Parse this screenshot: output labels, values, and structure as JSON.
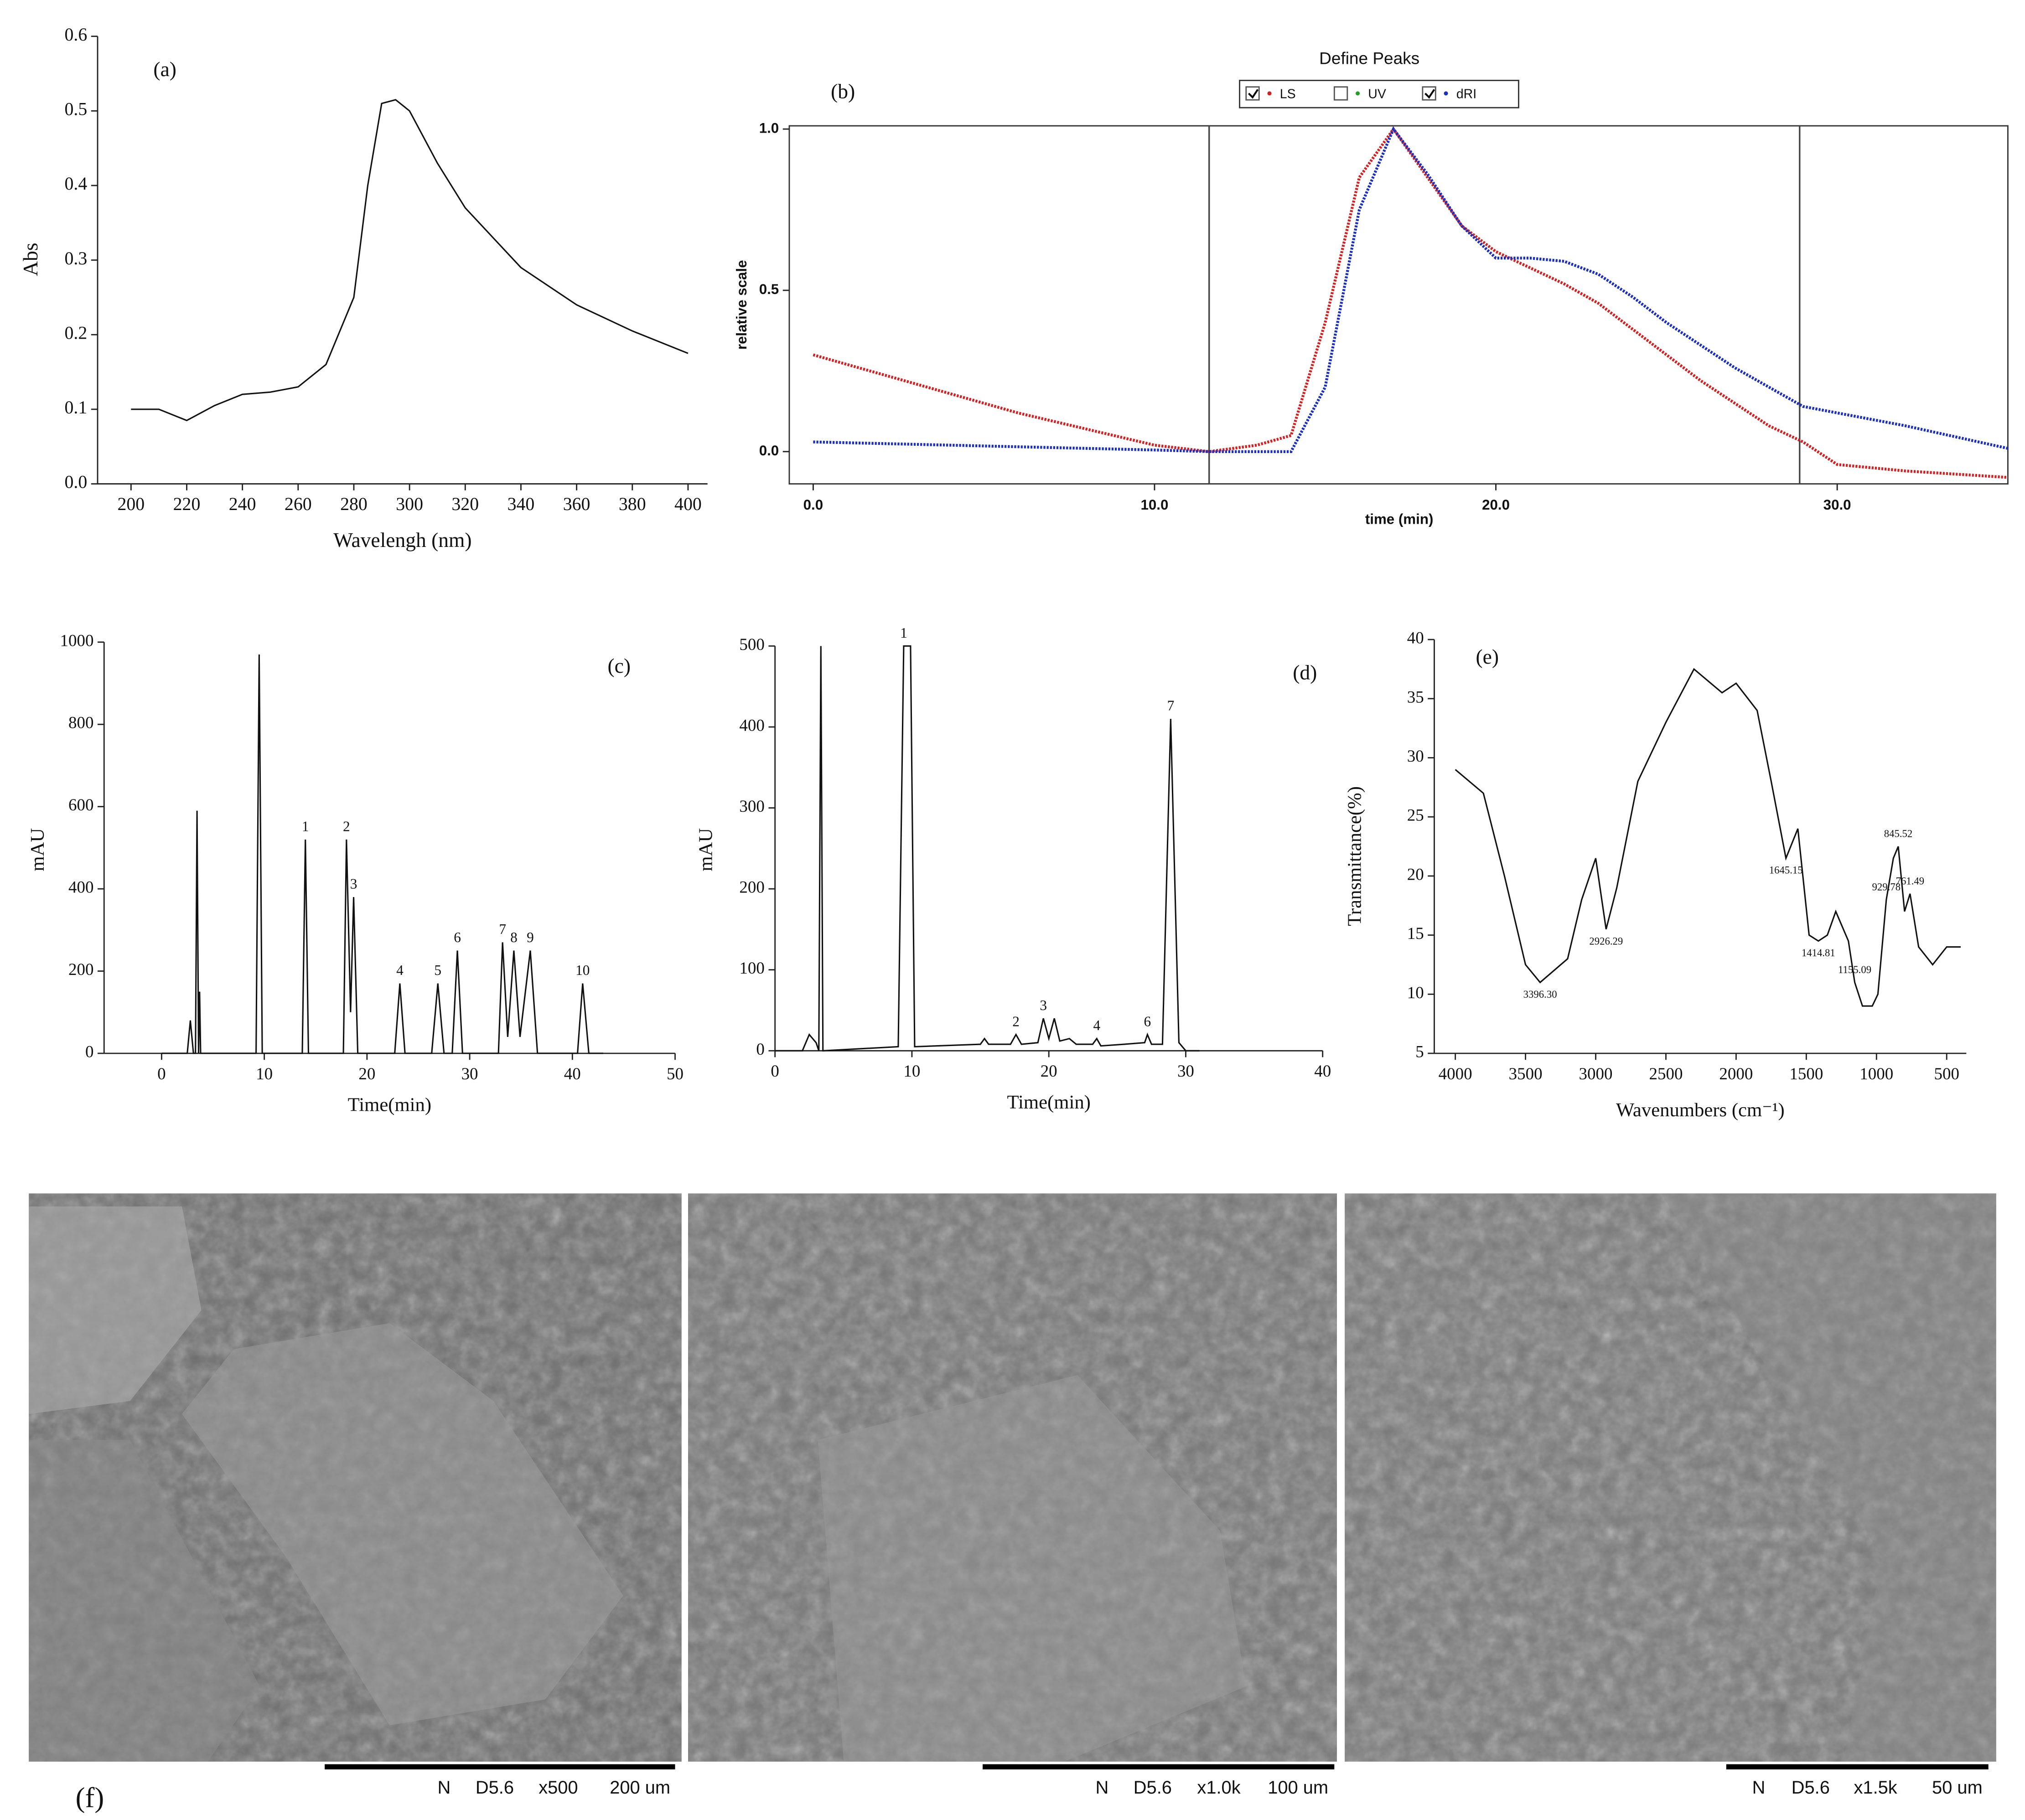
{
  "chart_data": [
    {
      "type": "line",
      "annotation": "(a)",
      "x_label": "Wavelengh (nm)",
      "y_label": "Abs",
      "color": "#111111",
      "x": [
        200,
        210,
        220,
        230,
        240,
        250,
        260,
        270,
        280,
        285,
        290,
        295,
        300,
        310,
        320,
        330,
        340,
        360,
        380,
        400
      ],
      "values": [
        0.1,
        0.1,
        0.085,
        0.105,
        0.12,
        0.123,
        0.13,
        0.16,
        0.25,
        0.4,
        0.51,
        0.515,
        0.5,
        0.43,
        0.37,
        0.33,
        0.29,
        0.24,
        0.205,
        0.175
      ],
      "xlim": [
        188,
        407
      ],
      "xticks": [
        200,
        220,
        240,
        260,
        280,
        300,
        320,
        340,
        360,
        380,
        400
      ],
      "ylim": [
        0,
        0.6
      ],
      "yticks": [
        {
          "value": 0,
          "label": "0.0"
        },
        0.1,
        0.2,
        0.3,
        0.4,
        0.5,
        0.6
      ]
    },
    {
      "type": "line",
      "title": "Define Peaks",
      "annotation": "(b)",
      "x_label": "time (min)",
      "y_label": "relative scale",
      "x": [
        0,
        2,
        4,
        6,
        8,
        10,
        11.6,
        13,
        14,
        15,
        16,
        17,
        18,
        19,
        20,
        21,
        22,
        23,
        24,
        25,
        26,
        27,
        28,
        29,
        30,
        32,
        35
      ],
      "series": [
        {
          "name": "LS",
          "color": "#d42020",
          "visible": true,
          "values": [
            0.3,
            0.24,
            0.18,
            0.12,
            0.07,
            0.02,
            0,
            0.02,
            0.05,
            0.4,
            0.85,
            1.0,
            0.85,
            0.7,
            0.62,
            0.57,
            0.52,
            0.46,
            0.38,
            0.3,
            0.22,
            0.15,
            0.08,
            0.03,
            -0.04,
            -0.06,
            -0.08
          ]
        },
        {
          "name": "UV",
          "color": "#20a020",
          "visible": false,
          "values": [
            null,
            null,
            null,
            null,
            null,
            null,
            null,
            null,
            null,
            null,
            null,
            null,
            null,
            null,
            null,
            null,
            null,
            null,
            null,
            null,
            null,
            null,
            null,
            null,
            null,
            null,
            null
          ]
        },
        {
          "name": "dRI",
          "color": "#1a2fc0",
          "visible": true,
          "values": [
            0.03,
            0.025,
            0.02,
            0.015,
            0.01,
            0.005,
            0,
            0,
            0,
            0.2,
            0.75,
            1.0,
            0.86,
            0.7,
            0.6,
            0.6,
            0.59,
            0.55,
            0.48,
            0.4,
            0.33,
            0.26,
            0.2,
            0.14,
            0.12,
            0.08,
            0.01
          ]
        }
      ],
      "markers": [
        11.6,
        28.9
      ],
      "xlim": [
        -0.7,
        35
      ],
      "xticks": [
        {
          "value": 0,
          "label": "0.0"
        },
        {
          "value": 10,
          "label": "10.0"
        },
        {
          "value": 20,
          "label": "20.0"
        },
        {
          "value": 30,
          "label": "30.0"
        }
      ],
      "ylim": [
        -0.1,
        1.01
      ],
      "yticks": [
        {
          "value": 0,
          "label": "0.0"
        },
        0.5,
        {
          "value": 1,
          "label": "1.0"
        }
      ]
    },
    {
      "type": "line",
      "annotation": "(c)",
      "x_label": "Time(min)",
      "y_label": "mAU",
      "color": "#111111",
      "x": [
        0,
        2.5,
        2.8,
        3.1,
        3.3,
        3.45,
        3.6,
        3.7,
        3.8,
        9.2,
        9.5,
        9.8,
        13.7,
        14,
        14.3,
        17.7,
        18,
        18.4,
        18.7,
        19.1,
        22.7,
        23.2,
        23.7,
        26.3,
        26.9,
        27.5,
        28.3,
        28.8,
        29.3,
        32.8,
        33.2,
        33.7,
        34.3,
        34.9,
        35.9,
        36.6,
        40.5,
        41,
        41.6,
        43
      ],
      "values": [
        0,
        0,
        80,
        0,
        0,
        590,
        0,
        150,
        0,
        0,
        970,
        0,
        0,
        520,
        0,
        0,
        520,
        100,
        380,
        0,
        0,
        170,
        0,
        0,
        170,
        0,
        0,
        250,
        0,
        0,
        270,
        40,
        250,
        40,
        250,
        0,
        0,
        170,
        0,
        0
      ],
      "point_labels": [
        null,
        null,
        null,
        null,
        null,
        null,
        null,
        null,
        null,
        null,
        null,
        null,
        null,
        "1",
        null,
        null,
        "2",
        null,
        "3",
        null,
        null,
        "4",
        null,
        null,
        "5",
        null,
        null,
        "6",
        null,
        null,
        "7",
        null,
        "8",
        null,
        "9",
        null,
        null,
        "10",
        null,
        null
      ],
      "xlim": [
        -5.6,
        50
      ],
      "xticks": [
        0,
        10,
        20,
        30,
        40,
        50
      ],
      "ylim": [
        0,
        1000
      ],
      "yticks": [
        0,
        200,
        400,
        600,
        800,
        1000
      ]
    },
    {
      "type": "line",
      "annotation": "(d)",
      "x_label": "Time(min)",
      "y_label": "mAU",
      "color": "#111111",
      "x": [
        0,
        2,
        2.5,
        3,
        3.2,
        3.35,
        3.5,
        9,
        9.4,
        9.9,
        10.2,
        15,
        15.3,
        15.6,
        17.2,
        17.6,
        18,
        19.2,
        19.6,
        20,
        20.4,
        20.8,
        21.5,
        22,
        23.2,
        23.5,
        23.8,
        25.5,
        27,
        27.2,
        27.5,
        28.3,
        28.9,
        29.5,
        30,
        31
      ],
      "values": [
        0,
        0,
        20,
        10,
        0,
        500,
        0,
        5,
        500,
        500,
        5,
        8,
        15,
        8,
        8,
        20,
        8,
        10,
        40,
        15,
        40,
        12,
        15,
        8,
        8,
        15,
        6,
        8,
        10,
        20,
        8,
        8,
        410,
        10,
        0,
        0
      ],
      "point_labels": [
        null,
        null,
        null,
        null,
        null,
        null,
        null,
        null,
        "1",
        null,
        null,
        null,
        null,
        null,
        null,
        "2",
        null,
        null,
        "3",
        null,
        null,
        null,
        null,
        null,
        null,
        "4",
        null,
        null,
        null,
        "6",
        null,
        null,
        "7",
        null,
        null,
        null
      ],
      "xlim": [
        0,
        40
      ],
      "xticks": [
        0,
        10,
        20,
        30,
        40
      ],
      "ylim": [
        0,
        500
      ],
      "yticks": [
        0,
        100,
        200,
        300,
        400,
        500
      ]
    },
    {
      "type": "line",
      "annotation": "(e)",
      "x_label": "Wavenumbers (cm⁻¹)",
      "y_label": "Transmittance(%)",
      "color": "#111111",
      "x": [
        4000,
        3800,
        3650,
        3500,
        3396,
        3200,
        3100,
        3000,
        2926,
        2850,
        2700,
        2500,
        2300,
        2200,
        2100,
        2000,
        1850,
        1750,
        1645,
        1560,
        1480,
        1414,
        1350,
        1290,
        1200,
        1155,
        1100,
        1030,
        990,
        930,
        880,
        845,
        800,
        761,
        700,
        600,
        500,
        400
      ],
      "values": [
        29,
        27,
        20,
        12.5,
        11,
        13,
        18,
        21.5,
        15.5,
        19,
        28,
        33,
        37.5,
        36.5,
        35.5,
        36.3,
        34,
        28,
        21.5,
        24,
        15,
        14.5,
        15,
        17,
        14.5,
        11,
        9,
        9,
        10,
        18,
        21.5,
        22.5,
        17,
        18.5,
        14,
        12.5,
        14,
        14
      ],
      "point_labels": [
        null,
        null,
        null,
        null,
        "3396.30",
        null,
        null,
        null,
        "2926.29",
        null,
        null,
        null,
        null,
        null,
        null,
        null,
        null,
        null,
        "1645.15",
        null,
        null,
        "1414.81",
        null,
        null,
        null,
        "1155.09",
        null,
        null,
        null,
        "929.78",
        null,
        "845.52",
        null,
        "761.49",
        null,
        null,
        null,
        null
      ],
      "xlim": [
        4150,
        360
      ],
      "xticks": [
        4000,
        3500,
        3000,
        2500,
        2000,
        1500,
        1000,
        500
      ],
      "ylim": [
        5,
        40
      ],
      "yticks": [
        5,
        10,
        15,
        20,
        25,
        30,
        35,
        40
      ]
    }
  ],
  "sem_figure": {
    "label": "(f)",
    "panels": [
      {
        "labels": [
          "N",
          "D5.6",
          "x500",
          "200 um"
        ]
      },
      {
        "labels": [
          "N",
          "D5.6",
          "x1.0k",
          "100 um"
        ]
      },
      {
        "labels": [
          "N",
          "D5.6",
          "x1.5k",
          "50 um"
        ]
      }
    ]
  }
}
